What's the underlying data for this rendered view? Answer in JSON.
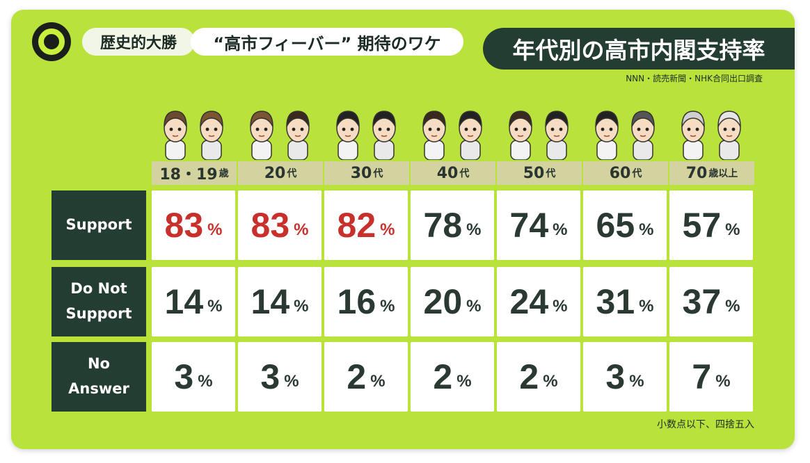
{
  "header": {
    "tag": "歴史的大勝",
    "headline": "“高市フィーバー” 期待のワケ",
    "title": "年代別の高市内閣支持率",
    "source": "NNN・読売新聞・NHK合同出口調査"
  },
  "footnote": "小数点以下、四捨五入",
  "colors": {
    "background": "#b9e33a",
    "dark": "#233d32",
    "highlight": "#c8302c",
    "text": "#2a3a33"
  },
  "chart_data": {
    "type": "table",
    "categories": [
      {
        "main": "18・19",
        "suffix": "歳"
      },
      {
        "main": "20",
        "suffix": "代"
      },
      {
        "main": "30",
        "suffix": "代"
      },
      {
        "main": "40",
        "suffix": "代"
      },
      {
        "main": "50",
        "suffix": "代"
      },
      {
        "main": "60",
        "suffix": "代"
      },
      {
        "main": "70",
        "suffix": "歳以上"
      }
    ],
    "unit": "%",
    "series": [
      {
        "name": "Support",
        "values": [
          83,
          83,
          82,
          78,
          74,
          65,
          57
        ],
        "highlight": [
          true,
          true,
          true,
          false,
          false,
          false,
          false
        ]
      },
      {
        "name": "Do Not Support",
        "values": [
          14,
          14,
          16,
          20,
          24,
          31,
          37
        ]
      },
      {
        "name": "No Answer",
        "values": [
          3,
          3,
          2,
          2,
          2,
          3,
          7
        ]
      }
    ]
  }
}
